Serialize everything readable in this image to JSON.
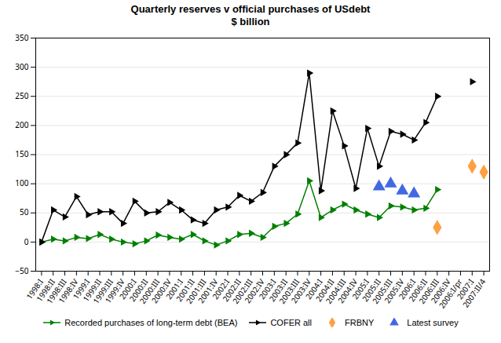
{
  "chart_data": {
    "type": "line",
    "title": "Quarterly reserves v official purchases of USdebt\n$ billion",
    "categories": [
      "1998:I",
      "1998:II",
      "1998:III",
      "1998:IV",
      "1999:I",
      "1999:II",
      "1999:III",
      "1999:IV",
      "2000:I",
      "2000:II",
      "2000:III",
      "2000:IV",
      "2001:I",
      "2001:II",
      "2001:III",
      "2001:IV",
      "2002:I",
      "2002:II",
      "2002:III",
      "2002:IV",
      "2003:I",
      "2003:II",
      "2003:III",
      "2003:IV",
      "2004:I",
      "2004:II",
      "2004:III",
      "2004:IV",
      "2005:I",
      "2005:II",
      "2005:III",
      "2005:IV",
      "2006:I",
      "2006:II",
      "2006:III",
      "2006:IV",
      "2006:I/pr",
      "2007:I",
      "2007:II/4"
    ],
    "series": [
      {
        "name": "Recorded purchases of long-term debt (BEA)",
        "type": "line",
        "color": "#008000",
        "marker": "triangle_right",
        "values": [
          0,
          5,
          2,
          8,
          6,
          13,
          5,
          0,
          -3,
          2,
          12,
          8,
          5,
          13,
          2,
          -5,
          2,
          13,
          15,
          8,
          27,
          32,
          48,
          105,
          42,
          55,
          65,
          55,
          48,
          42,
          62,
          60,
          55,
          58,
          90,
          null,
          null,
          null,
          null
        ]
      },
      {
        "name": "COFER all",
        "type": "line",
        "color": "#000000",
        "marker": "triangle_right",
        "values": [
          0,
          55,
          43,
          78,
          47,
          52,
          52,
          32,
          70,
          50,
          52,
          68,
          55,
          38,
          32,
          55,
          60,
          80,
          70,
          85,
          130,
          150,
          170,
          290,
          88,
          225,
          165,
          92,
          195,
          130,
          190,
          185,
          175,
          205,
          250,
          null,
          null,
          275,
          null
        ]
      },
      {
        "name": "FRBNY",
        "type": "scatter",
        "color": "#FFA040",
        "marker": "diamond",
        "values": [
          null,
          null,
          null,
          null,
          null,
          null,
          null,
          null,
          null,
          null,
          null,
          null,
          null,
          null,
          null,
          null,
          null,
          null,
          null,
          null,
          null,
          null,
          null,
          null,
          null,
          null,
          null,
          null,
          null,
          null,
          null,
          null,
          null,
          null,
          25,
          null,
          null,
          130,
          120
        ]
      },
      {
        "name": "Latest survey",
        "type": "scatter",
        "color": "#4169E1",
        "marker": "triangle",
        "values": [
          null,
          null,
          null,
          null,
          null,
          null,
          null,
          null,
          null,
          null,
          null,
          null,
          null,
          null,
          null,
          null,
          null,
          null,
          null,
          null,
          null,
          null,
          null,
          null,
          null,
          null,
          null,
          null,
          null,
          95,
          100,
          88,
          83,
          null,
          null,
          null,
          null,
          null,
          null
        ]
      }
    ],
    "ylim": [
      -50,
      350
    ],
    "yticks": [
      -50,
      0,
      50,
      100,
      150,
      200,
      250,
      300,
      350
    ],
    "grid": true,
    "legend": "bottom"
  }
}
